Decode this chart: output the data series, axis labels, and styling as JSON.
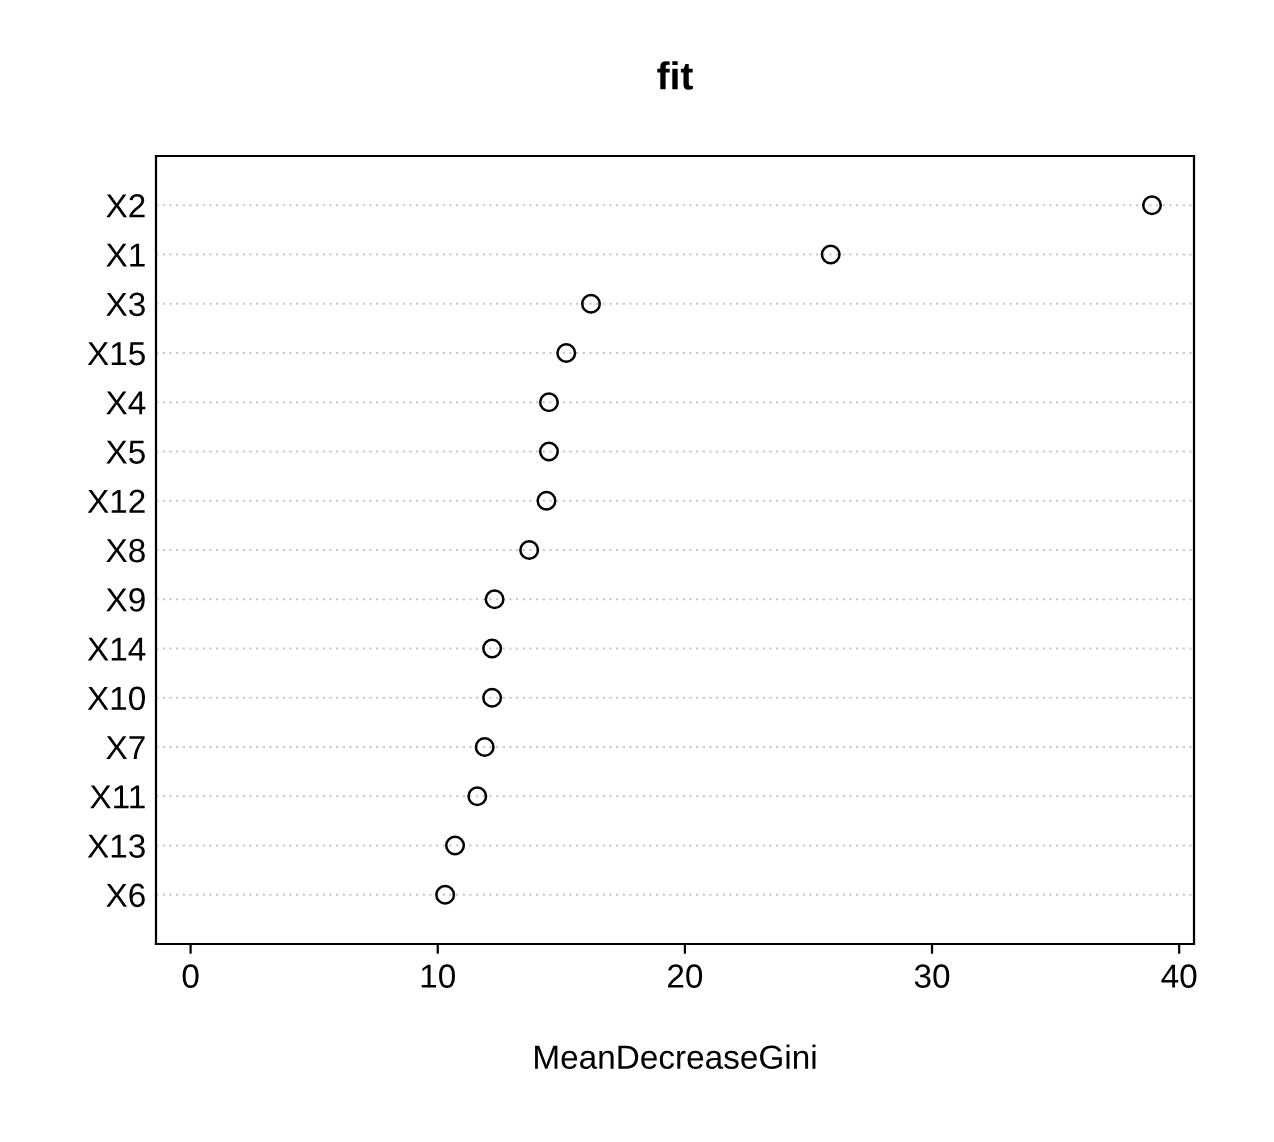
{
  "chart_data": {
    "type": "scatter",
    "title": "fit",
    "xlabel": "MeanDecreaseGini",
    "orientation": "horizontal",
    "categories": [
      "X2",
      "X1",
      "X3",
      "X15",
      "X4",
      "X5",
      "X12",
      "X8",
      "X9",
      "X14",
      "X10",
      "X7",
      "X11",
      "X13",
      "X6"
    ],
    "values": [
      38.9,
      25.9,
      16.2,
      15.2,
      14.5,
      14.5,
      14.4,
      13.7,
      12.3,
      12.2,
      12.2,
      11.9,
      11.6,
      10.7,
      10.3
    ],
    "color": "#000000",
    "marker": "circle",
    "grid": "y",
    "xlim": [
      -1.4,
      40.6
    ],
    "xticks": [
      0,
      10,
      20,
      30,
      40
    ]
  }
}
